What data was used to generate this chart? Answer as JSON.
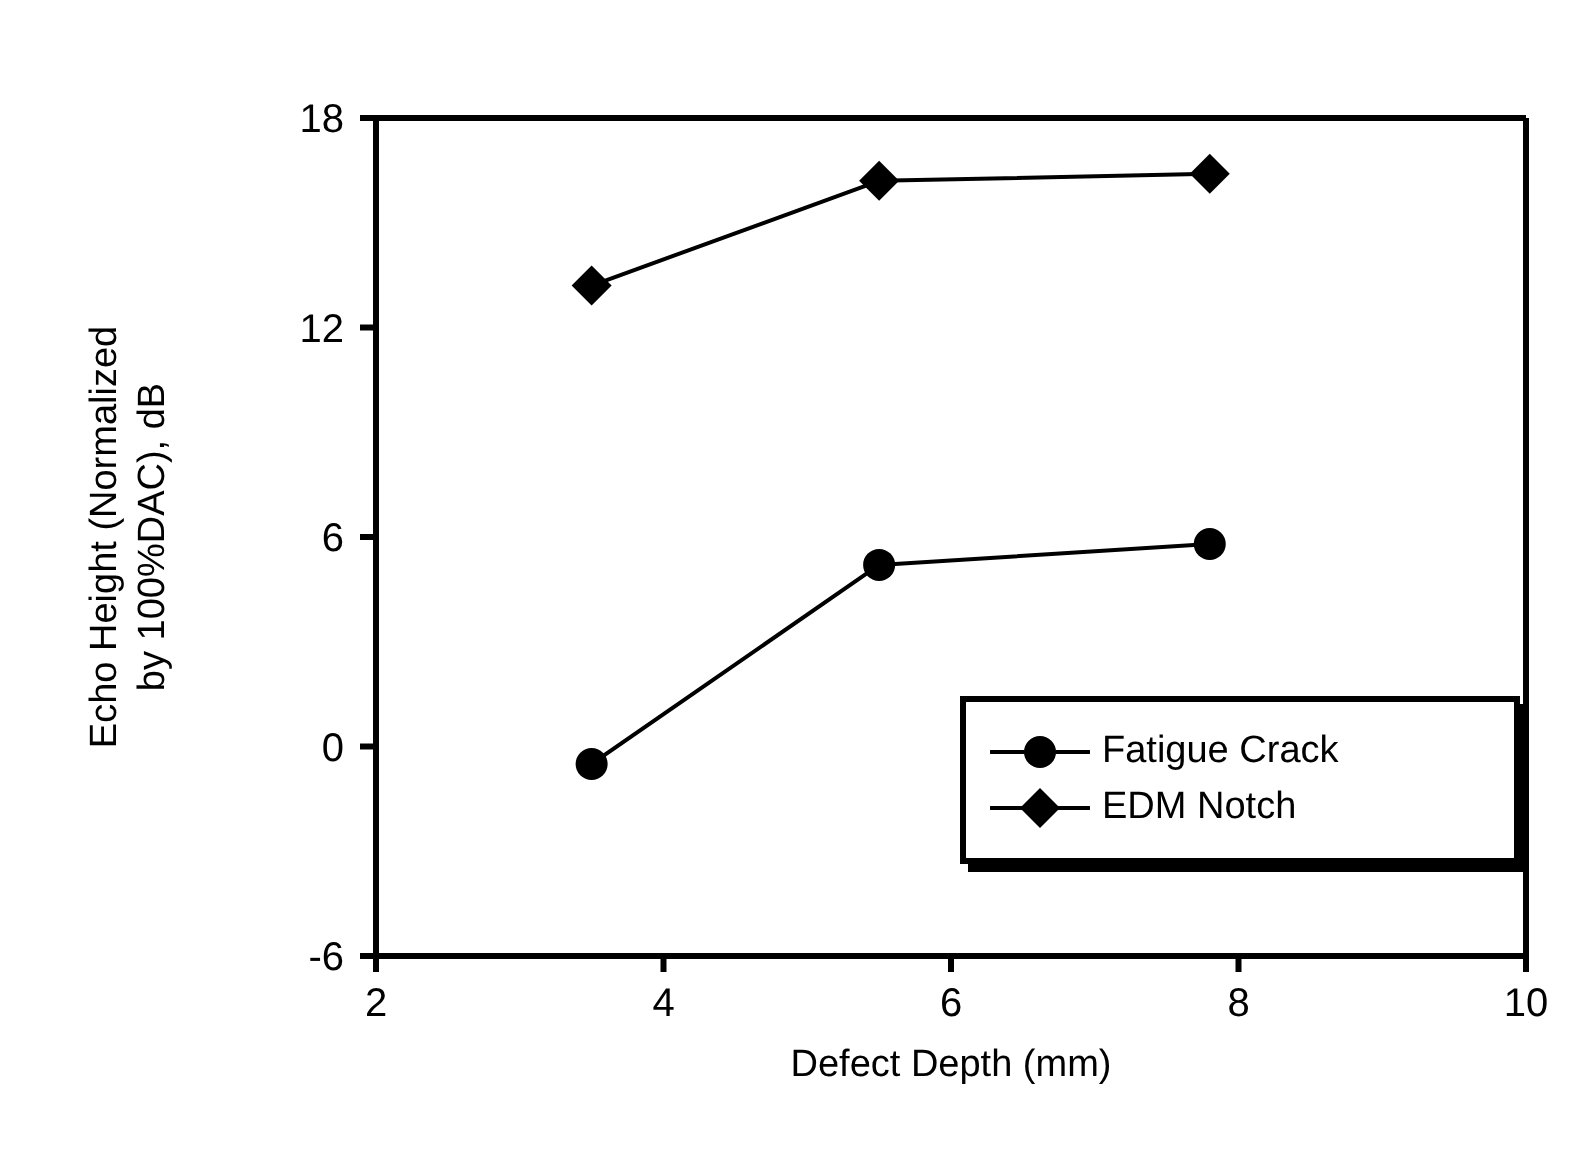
{
  "chart_data": {
    "type": "line",
    "xlabel": "Defect Depth (mm)",
    "ylabel": "Echo Height (Normalized\nby 100%DAC),  dB",
    "x": [
      3.5,
      5.5,
      7.8
    ],
    "series": [
      {
        "name": "Fatigue Crack",
        "color": "#000000",
        "marker": "circle",
        "values": [
          -0.5,
          5.2,
          5.8
        ]
      },
      {
        "name": "EDM Notch",
        "color": "#000000",
        "marker": "diamond",
        "values": [
          13.2,
          16.2,
          16.4
        ]
      }
    ],
    "xlim": [
      2,
      10
    ],
    "xticks": [
      2,
      4,
      6,
      8,
      10
    ],
    "ylim": [
      -6,
      18
    ],
    "yticks": [
      -6,
      0,
      6,
      12,
      18
    ],
    "legend": "bottom right",
    "line_style": "solid"
  }
}
